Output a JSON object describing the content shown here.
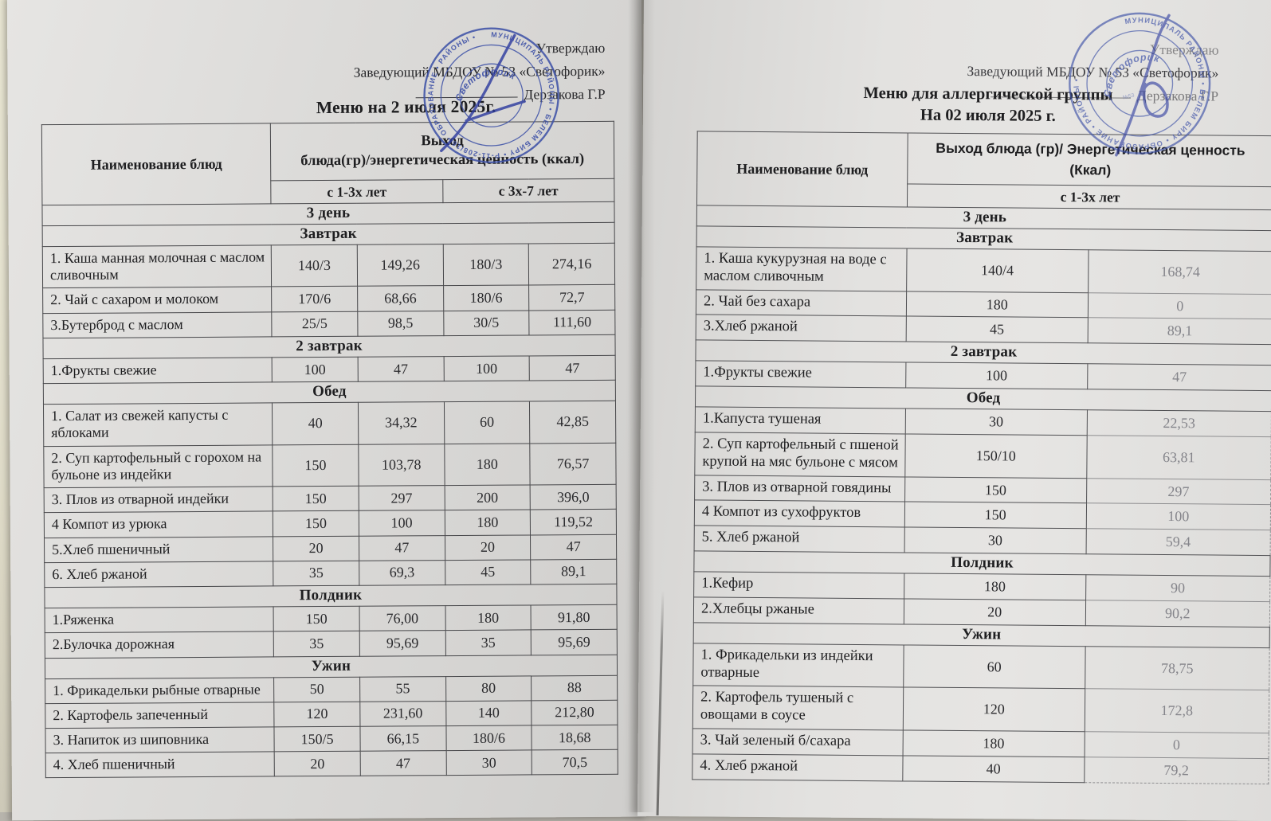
{
  "left_page": {
    "approval": {
      "line1": "Утверждаю",
      "line2": "Заведующий МБДОУ № 53 «Светофорик»",
      "line3": "Дерзакова Г.Р"
    },
    "title": "Меню на 2 июля  2025г.",
    "stamp": {
      "ring_text": "МУНИЦИПАЛЬ РАЙОНЫ • БЕЛЕМ БИРҮ • Р-11-208/16 • ОБРАЗОВАНИЕ • РАЙОНЫ •",
      "center_text": "Светофорик"
    },
    "table": {
      "name_header": "Наименование блюд",
      "value_header_line1": "Выход",
      "value_header_line2": "блюда(гр)/энергетическая ценность (ккал)",
      "age_groups": [
        "с 1-3х лет",
        "с 3х-7 лет"
      ],
      "day_label": "3 день",
      "sections": [
        {
          "label": "Завтрак",
          "rows": [
            {
              "name": "1. Каша манная молочная с маслом сливочным",
              "values": [
                "140/3",
                "149,26",
                "180/3",
                "274,16"
              ]
            },
            {
              "name": "2. Чай с сахаром и молоком",
              "values": [
                "170/6",
                "68,66",
                "180/6",
                "72,7"
              ]
            },
            {
              "name": "3.Бутерброд с маслом",
              "values": [
                "25/5",
                "98,5",
                "30/5",
                "111,60"
              ]
            }
          ]
        },
        {
          "label": "2  завтрак",
          "rows": [
            {
              "name": "1.Фрукты свежие",
              "values": [
                "100",
                "47",
                "100",
                "47"
              ]
            }
          ]
        },
        {
          "label": "Обед",
          "rows": [
            {
              "name": "1. Салат из свежей  капусты с яблоками",
              "values": [
                "40",
                "34,32",
                "60",
                "42,85"
              ]
            },
            {
              "name": "2. Суп картофельный с горохом на бульоне из индейки",
              "values": [
                "150",
                "103,78",
                "180",
                "76,57"
              ]
            },
            {
              "name": "3. Плов из отварной индейки",
              "values": [
                "150",
                "297",
                "200",
                "396,0"
              ]
            },
            {
              "name": "4 Компот из урюка",
              "values": [
                "150",
                "100",
                "180",
                "119,52"
              ]
            },
            {
              "name": "5.Хлеб пшеничный",
              "values": [
                "20",
                "47",
                "20",
                "47"
              ]
            },
            {
              "name": "6. Хлеб ржаной",
              "values": [
                "35",
                "69,3",
                "45",
                "89,1"
              ]
            }
          ]
        },
        {
          "label": "Полдник",
          "rows": [
            {
              "name": "1.Ряженка",
              "values": [
                "150",
                "76,00",
                "180",
                "91,80"
              ]
            },
            {
              "name": "2.Булочка дорожная",
              "values": [
                "35",
                "95,69",
                "35",
                "95,69"
              ]
            }
          ]
        },
        {
          "label": "Ужин",
          "rows": [
            {
              "name": "1. Фрикадельки рыбные отварные",
              "values": [
                "50",
                "55",
                "80",
                "88"
              ]
            },
            {
              "name": "2. Картофель запеченный",
              "values": [
                "120",
                "231,60",
                "140",
                "212,80"
              ]
            },
            {
              "name": "3. Напиток из шиповника",
              "values": [
                "150/5",
                "66,15",
                "180/6",
                "18,68"
              ]
            },
            {
              "name": "4. Хлеб пшеничный",
              "values": [
                "20",
                "47",
                "30",
                "70,5"
              ]
            }
          ]
        }
      ]
    }
  },
  "right_page": {
    "approval": {
      "line1": "Утверждаю",
      "line2": "Заведующий МБДОУ № 53 «Светофорик»",
      "line3": "Дерзакова Г.Р"
    },
    "title_line1": "Меню для аллергической группы",
    "title_line2": "На 02 июля 2025 г.",
    "stamp": {
      "ring_text": "МУНИЦИПАЛЬ РАЙОНЫ • БЕЛЕМ БИРҮ • ОБРАЗОВАНИЕ • РАЙОНЫ •",
      "center_text": "Светофорик"
    },
    "table": {
      "name_header": "Наименование блюд",
      "value_header_line1": "Выход блюда (гр)/ Энергетическая ценность",
      "value_header_line2": "(Ккал)",
      "age_groups": [
        "с 1-3х лет"
      ],
      "day_label": "3 день",
      "sections": [
        {
          "label": "Завтрак",
          "rows": [
            {
              "name": "1. Каша кукурузная на воде с маслом сливочным",
              "values": [
                "140/4",
                "168,74"
              ]
            },
            {
              "name": "2. Чай без сахара",
              "values": [
                "180",
                "0"
              ]
            },
            {
              "name": "3.Хлеб ржаной",
              "values": [
                "45",
                "89,1"
              ]
            }
          ]
        },
        {
          "label": "2 завтрак",
          "rows": [
            {
              "name": "1.Фрукты свежие",
              "values": [
                "100",
                "47"
              ]
            }
          ]
        },
        {
          "label": "Обед",
          "rows": [
            {
              "name": "1.Капуста тушеная",
              "values": [
                "30",
                "22,53"
              ]
            },
            {
              "name": "2. Суп картофельный с пшеной крупой на мяс бульоне с мясом",
              "values": [
                "150/10",
                "63,81"
              ]
            },
            {
              "name": "3. Плов из отварной говядины",
              "values": [
                "150",
                "297"
              ]
            },
            {
              "name": "4 Компот из сухофруктов",
              "values": [
                "150",
                "100"
              ]
            },
            {
              "name": "5. Хлеб ржаной",
              "values": [
                "30",
                "59,4"
              ]
            }
          ]
        },
        {
          "label": "Полдник",
          "rows": [
            {
              "name": "1.Кефир",
              "values": [
                "180",
                "90"
              ]
            },
            {
              "name": "2.Хлебцы ржаные",
              "values": [
                "20",
                "90,2"
              ]
            }
          ]
        },
        {
          "label": "Ужин",
          "rows": [
            {
              "name": "1. Фрикадельки из индейки отварные",
              "values": [
                "60",
                "78,75"
              ]
            },
            {
              "name": "2. Картофель тушеный с овощами в соусе",
              "values": [
                "120",
                "172,8"
              ]
            },
            {
              "name": "3. Чай зеленый б/сахара",
              "values": [
                "180",
                "0"
              ]
            },
            {
              "name": "4. Хлеб ржаной",
              "values": [
                "40",
                "79,2"
              ]
            }
          ]
        }
      ]
    }
  }
}
